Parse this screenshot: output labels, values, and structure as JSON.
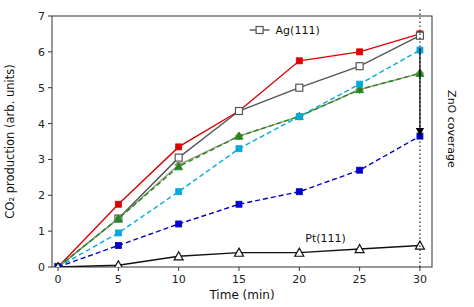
{
  "chart_data": {
    "type": "line",
    "xlabel": "Time (min)",
    "ylabel": "CO₂ production (arb. units)",
    "x": [
      0,
      5,
      10,
      15,
      20,
      25,
      30
    ],
    "series": [
      {
        "color": "#dd0000",
        "marker": "square",
        "line_style": "solid",
        "values": [
          0,
          1.75,
          3.35,
          4.35,
          5.75,
          6.0,
          6.5
        ]
      },
      {
        "name": "Ag(111)",
        "color": "#555555",
        "marker": "square-open",
        "line_style": "solid",
        "values": [
          0,
          1.35,
          3.05,
          4.35,
          5.0,
          5.6,
          6.45
        ]
      },
      {
        "color": "#999977",
        "marker": "diamond",
        "line_style": "solid",
        "values": [
          0,
          1.35,
          2.85,
          3.65,
          4.2,
          4.95,
          5.4
        ]
      },
      {
        "color": "#228822",
        "marker": "triangle",
        "line_style": "dashed",
        "values": [
          0,
          1.35,
          2.8,
          3.65,
          4.2,
          4.95,
          5.4
        ]
      },
      {
        "color": "#00aadd",
        "marker": "square",
        "line_style": "dashed",
        "values": [
          0,
          0.95,
          2.1,
          3.3,
          4.2,
          5.1,
          6.05
        ]
      },
      {
        "color": "#0000cc",
        "marker": "square",
        "line_style": "dashed",
        "values": [
          0,
          0.6,
          1.2,
          1.75,
          2.1,
          2.7,
          3.65
        ]
      },
      {
        "color": "#111111",
        "marker": "triangle-open",
        "line_style": "solid",
        "values": [
          0,
          0.05,
          0.3,
          0.4,
          0.4,
          0.5,
          0.6
        ]
      }
    ],
    "xlim": [
      -0.5,
      31
    ],
    "ylim": [
      0,
      7
    ],
    "xticks": [
      0,
      5,
      10,
      15,
      20,
      25,
      30
    ],
    "yticks": [
      0,
      1,
      2,
      3,
      4,
      5,
      6,
      7
    ],
    "grid": false,
    "legend": "top",
    "annotations": [
      {
        "text": "Pt(111)",
        "x": 20,
        "y": 0.42
      },
      {
        "text": "ZnO coverage",
        "x": 30,
        "arrow": [
          6.1,
          3.65
        ]
      }
    ]
  }
}
